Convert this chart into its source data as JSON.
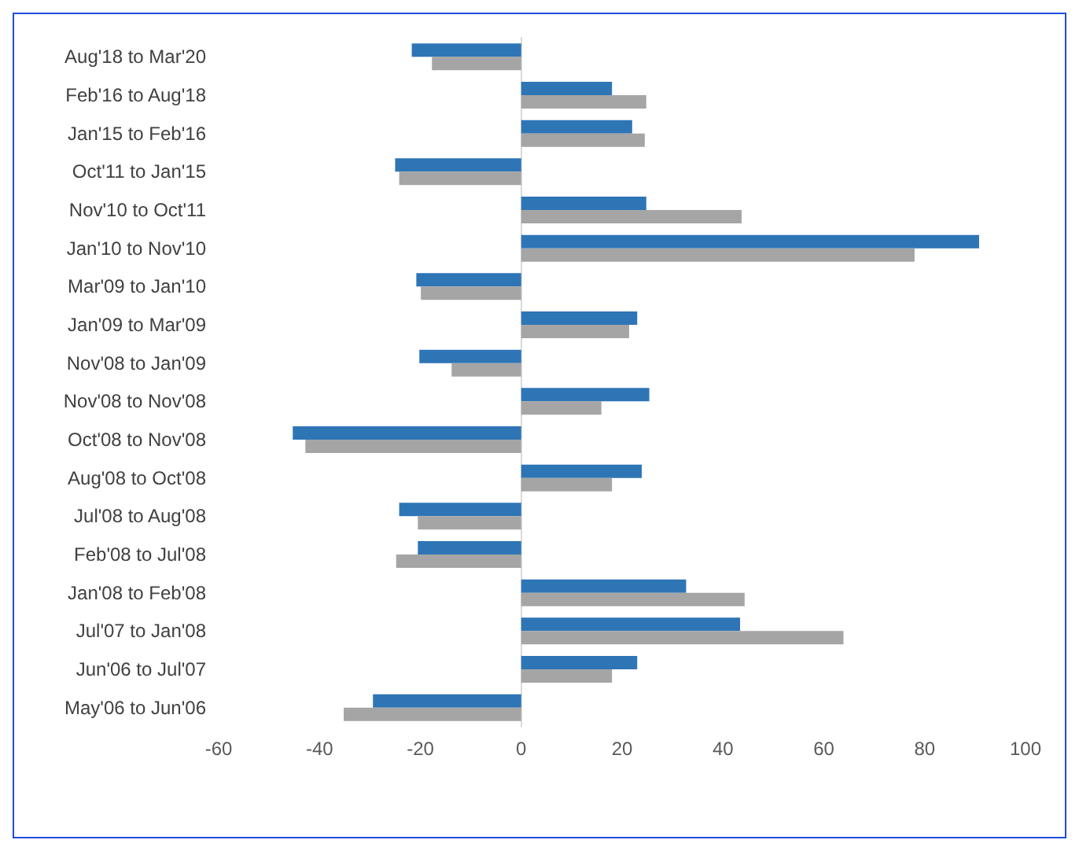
{
  "chart_data": {
    "type": "bar",
    "orientation": "horizontal",
    "categories": [
      "Aug'18 to Mar'20",
      "Feb'16 to Aug'18",
      "Jan'15 to Feb'16",
      "Oct'11 to Jan'15",
      "Nov'10 to Oct'11",
      "Jan'10 to Nov'10",
      "Mar'09 to Jan'10",
      "Jan'09 to Mar'09",
      "Nov'08 to Jan'09",
      "Nov'08 to Nov'08",
      "Oct'08 to Nov'08",
      "Aug'08 to Oct'08",
      "Jul'08 to Aug'08",
      "Feb'08 to Jul'08",
      "Jan'08 to Feb'08",
      "Jul'07 to Jan'08",
      "Jun'06 to Jul'07",
      "May'06 to Jun'06"
    ],
    "series": [
      {
        "color": "#2e75b6",
        "values": [
          -21.7,
          18,
          22,
          -25,
          24.8,
          90.8,
          -20.8,
          23,
          -20.2,
          25.4,
          -45.3,
          23.9,
          -24.2,
          -20.5,
          32.7,
          43.4,
          23,
          -29.4
        ]
      },
      {
        "color": "#a5a5a5",
        "values": [
          -17.7,
          24.8,
          24.5,
          -24.2,
          43.7,
          78,
          -19.9,
          21.4,
          -13.8,
          15.9,
          -42.8,
          18,
          -20.5,
          -24.8,
          44.3,
          63.9,
          18,
          -35.2
        ]
      }
    ],
    "xlim": [
      -60,
      100
    ],
    "xticks": [
      -60,
      -40,
      -20,
      0,
      20,
      40,
      60,
      80,
      100
    ]
  }
}
